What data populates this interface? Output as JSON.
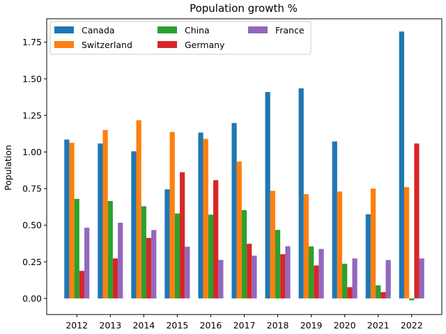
{
  "chart_data": {
    "type": "bar",
    "title": "Population growth %",
    "xlabel": "",
    "ylabel": "Population",
    "categories": [
      "2012",
      "2013",
      "2014",
      "2015",
      "2016",
      "2017",
      "2018",
      "2019",
      "2020",
      "2021",
      "2022"
    ],
    "series": [
      {
        "name": "Canada",
        "color": "#1f77b4",
        "values": [
          1.085,
          1.058,
          1.005,
          0.745,
          1.133,
          1.198,
          1.41,
          1.435,
          1.072,
          0.575,
          1.823
        ]
      },
      {
        "name": "Switzerland",
        "color": "#ff7f0e",
        "values": [
          1.063,
          1.15,
          1.217,
          1.137,
          1.09,
          0.935,
          0.735,
          0.712,
          0.73,
          0.75,
          0.76
        ]
      },
      {
        "name": "China",
        "color": "#2ca02c",
        "values": [
          0.68,
          0.665,
          0.63,
          0.58,
          0.572,
          0.603,
          0.468,
          0.355,
          0.237,
          0.089,
          -0.013
        ]
      },
      {
        "name": "Germany",
        "color": "#d62728",
        "values": [
          0.188,
          0.273,
          0.413,
          0.862,
          0.808,
          0.373,
          0.302,
          0.225,
          0.077,
          0.043,
          1.058
        ]
      },
      {
        "name": "France",
        "color": "#9467bd",
        "values": [
          0.483,
          0.517,
          0.467,
          0.353,
          0.263,
          0.292,
          0.357,
          0.338,
          0.273,
          0.262,
          0.273
        ]
      }
    ],
    "yticks": [
      "0.00",
      "0.25",
      "0.50",
      "0.75",
      "1.00",
      "1.25",
      "1.50",
      "1.75"
    ],
    "ylim": [
      -0.11,
      1.91
    ],
    "grid": false,
    "legend": {
      "position": "top-left",
      "columns": 3
    }
  }
}
